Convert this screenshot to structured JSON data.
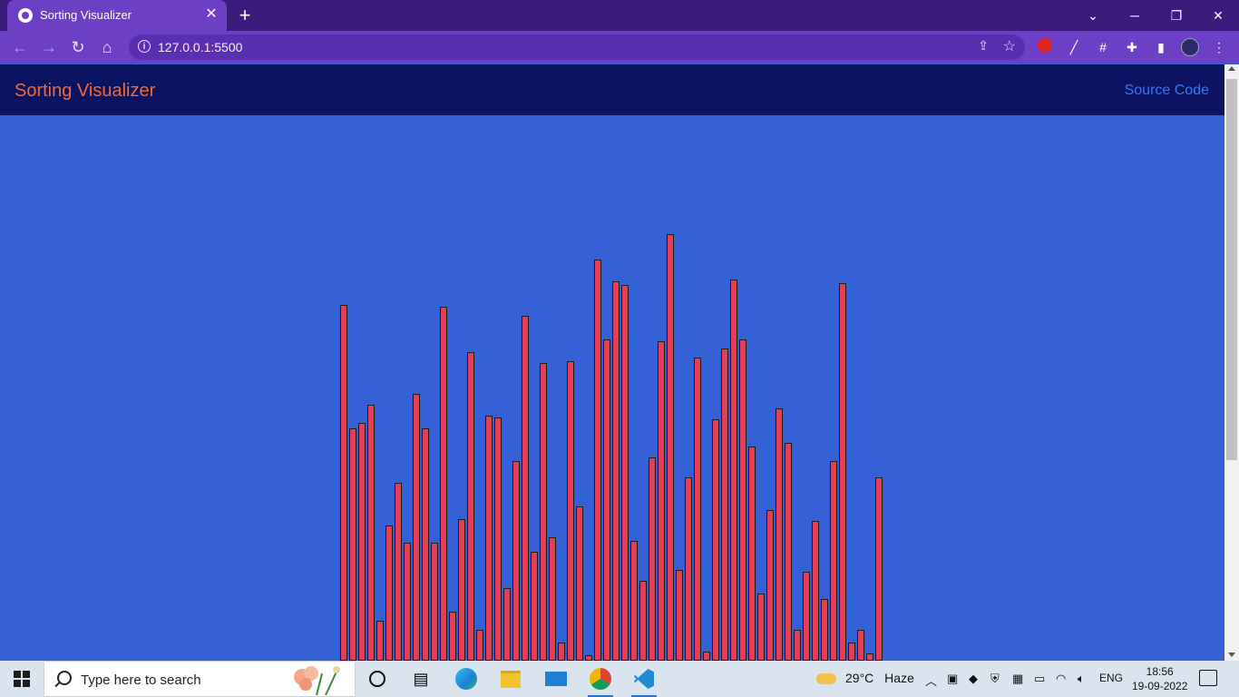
{
  "browser": {
    "tab_title": "Sorting Visualizer",
    "tab_close": "✕",
    "new_tab": "+",
    "url": "127.0.0.1:5500",
    "window_controls": [
      "⌄",
      "─",
      "❐",
      "✕"
    ]
  },
  "page": {
    "brand": "Sorting Visualizer",
    "source_link": "Source Code",
    "bar_color": "#e73e53",
    "background": "#3461d5",
    "navbar_color": "#0c1361",
    "bar_values": [
      392,
      256,
      262,
      282,
      44,
      149,
      196,
      130,
      294,
      256,
      130,
      390,
      54,
      156,
      340,
      34,
      270,
      268,
      80,
      220,
      380,
      120,
      328,
      136,
      20,
      330,
      170,
      6,
      442,
      354,
      418,
      414,
      132,
      88,
      224,
      352,
      470,
      100,
      202,
      334,
      10,
      266,
      344,
      420,
      354,
      236,
      74,
      166,
      278,
      240,
      34,
      98,
      154,
      68,
      220,
      416,
      20,
      34,
      8,
      202
    ]
  },
  "taskbar": {
    "search_placeholder": "Type here to search",
    "weather_temp": "29°C",
    "weather_desc": "Haze",
    "language": "ENG",
    "time": "18:56",
    "date": "19-09-2022"
  }
}
